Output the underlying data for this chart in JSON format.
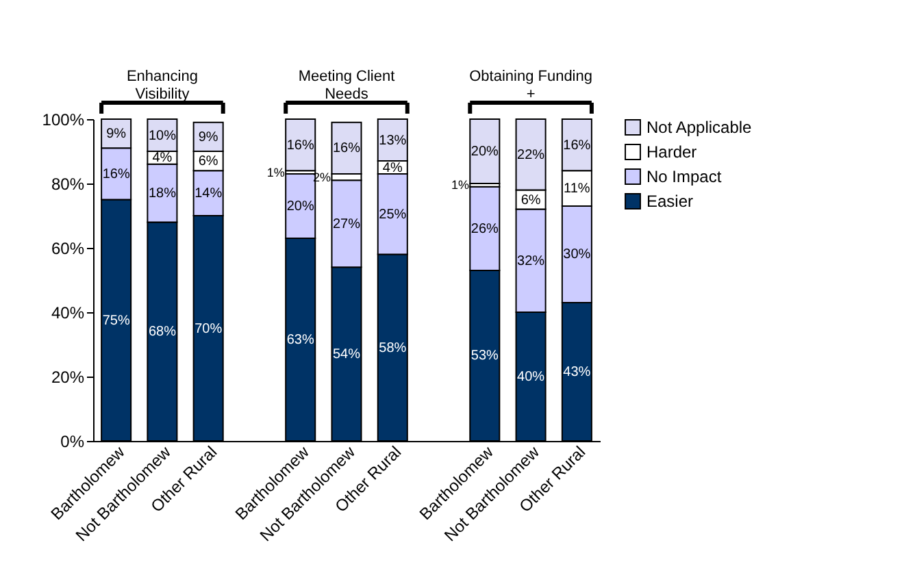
{
  "chart_data": {
    "type": "bar",
    "stacked": true,
    "legend": "right",
    "grid": false,
    "tick_labels": "y",
    "categories": [
      "Bartholomew",
      "Not Bartholomew",
      "Other Rural",
      "Bartholomew",
      "Not Bartholomew",
      "Other Rural",
      "Bartholomew",
      "Not Bartholomew",
      "Other Rural"
    ],
    "ylim": [
      0,
      100
    ],
    "yticks": [
      {
        "value": 0,
        "label": "0%"
      },
      {
        "value": 20,
        "label": "20%"
      },
      {
        "value": 40,
        "label": "40%"
      },
      {
        "value": 60,
        "label": "60%"
      },
      {
        "value": 80,
        "label": "80%"
      },
      {
        "value": 100,
        "label": "100%"
      }
    ],
    "series": [
      {
        "name": "Easier",
        "color": "#003366",
        "values": [
          75,
          68,
          70,
          63,
          54,
          58,
          53,
          40,
          43
        ],
        "value_labels": [
          "75%",
          "68%",
          "70%",
          "63%",
          "54%",
          "58%",
          "53%",
          "40%",
          "43%"
        ]
      },
      {
        "name": "No Impact",
        "color": "#ccccff",
        "values": [
          16,
          18,
          14,
          20,
          27,
          25,
          26,
          32,
          30
        ],
        "value_labels": [
          "16%",
          "18%",
          "14%",
          "20%",
          "27%",
          "25%",
          "26%",
          "32%",
          "30%"
        ]
      },
      {
        "name": "Harder",
        "color": "#ffffff",
        "values": [
          null,
          4,
          6,
          1,
          2,
          4,
          1,
          6,
          11
        ],
        "value_labels": [
          null,
          "4%",
          "6%",
          "1%",
          "2%",
          "4%",
          "1%",
          "6%",
          "11%"
        ]
      },
      {
        "name": "Not Applicable",
        "color": "#dcdcf5",
        "values": [
          9,
          10,
          9,
          16,
          16,
          13,
          20,
          22,
          16
        ],
        "value_labels": [
          "9%",
          "10%",
          "9%",
          "16%",
          "16%",
          "13%",
          "20%",
          "22%",
          "16%"
        ]
      }
    ],
    "annotations": [
      "Enhancing Visibility",
      "Meeting Client Needs",
      "Obtaining Funding +"
    ]
  }
}
